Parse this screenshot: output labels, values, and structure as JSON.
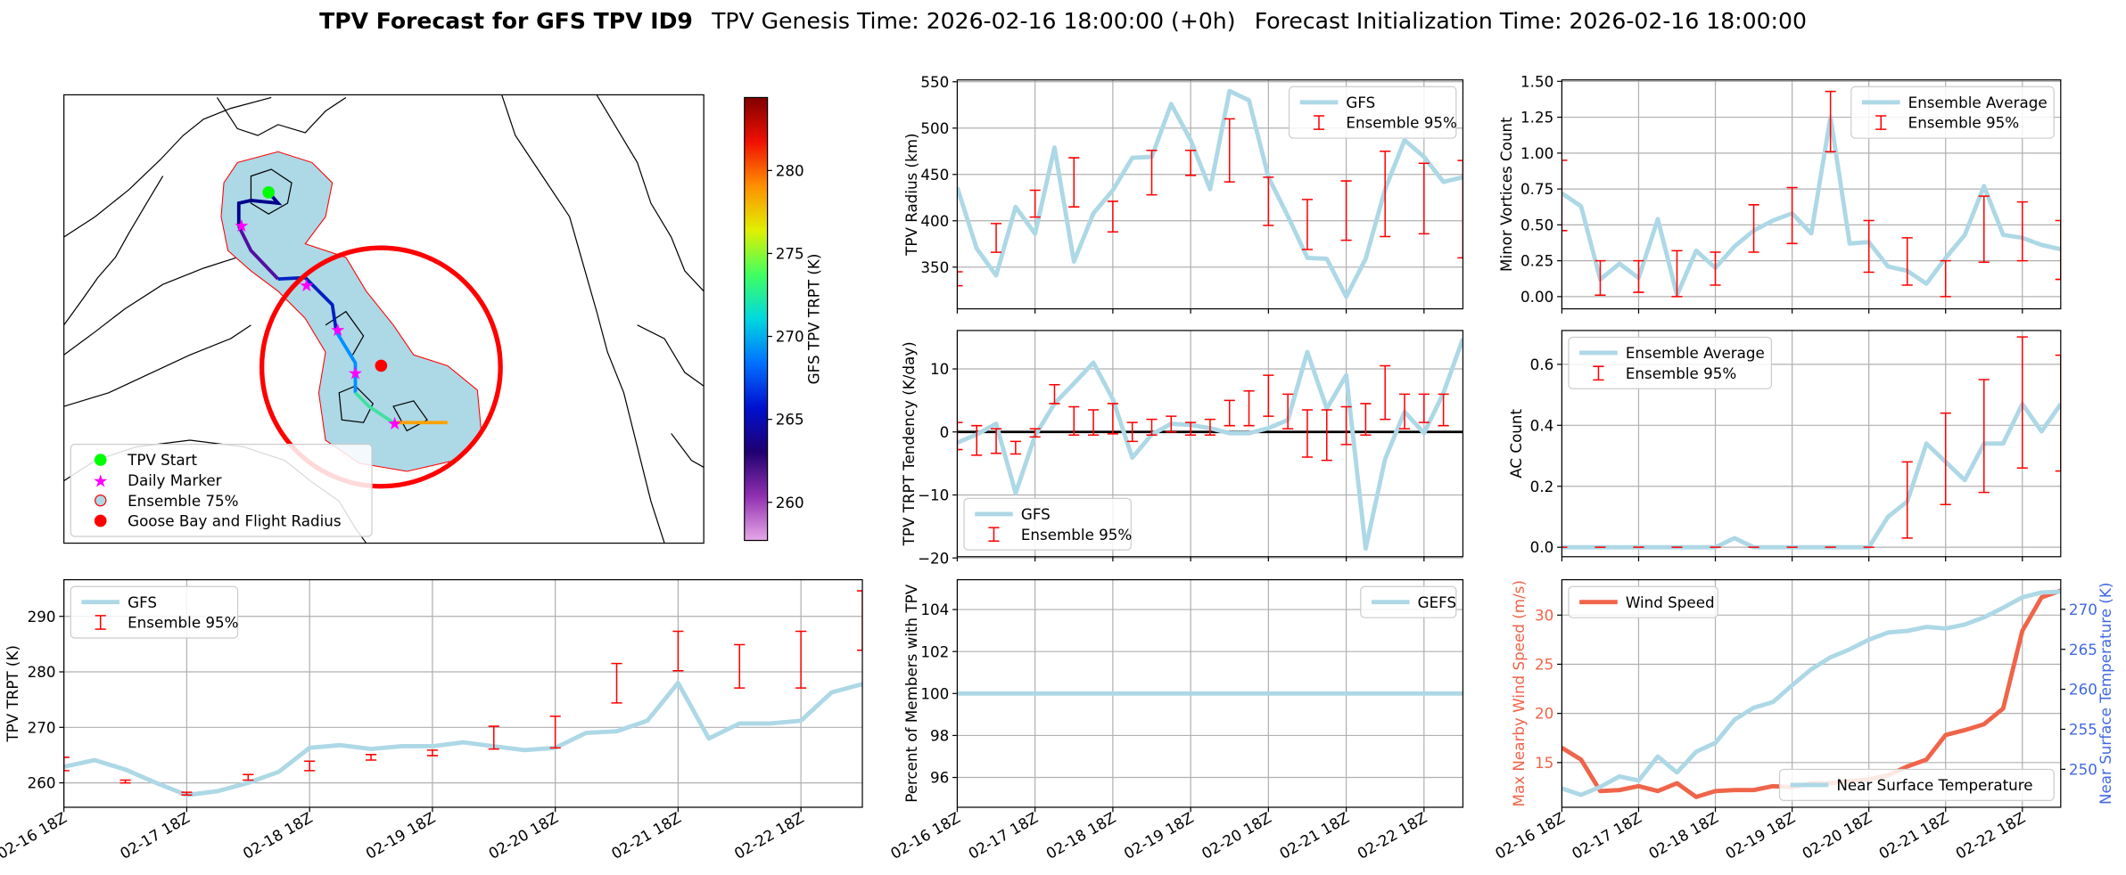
{
  "header": {
    "title": "TPV Forecast for GFS TPV ID9",
    "genesis": "TPV Genesis Time: 2026-02-16 18:00:00 (+0h)",
    "initialization": "Forecast Initialization Time: 2026-02-16 18:00:00"
  },
  "chart_data": [
    {
      "type": "map",
      "colorbar_label": "GFS TPV TRPT (K)",
      "clim": [
        257.7,
        284.4
      ],
      "cticks": [
        260,
        265,
        270,
        275,
        280
      ],
      "legend": "lower left",
      "legend_entries": [
        {
          "name": "TPV Start",
          "color": "#00ff00",
          "marker": "circle"
        },
        {
          "name": "Daily Marker",
          "color": "#ff00ff",
          "marker": "star"
        },
        {
          "name": "Ensemble 75%",
          "color": "#add8e6",
          "marker": "ring"
        },
        {
          "name": "Goose Bay and Flight Radius",
          "color": "#ff0000",
          "marker": "circle"
        }
      ]
    },
    {
      "type": "line",
      "ylabel": "TPV Radius (km)",
      "categories": [
        "02-16 18Z",
        null,
        null,
        null,
        "02-17 18Z",
        null,
        null,
        null,
        "02-18 18Z",
        null,
        null,
        null,
        "02-19 18Z",
        null,
        null,
        null,
        "02-20 18Z",
        null,
        null,
        null,
        "02-21 18Z",
        null,
        null,
        null,
        "02-22 18Z",
        null,
        null
      ],
      "ylim": [
        305,
        552
      ],
      "yticks": [
        350,
        400,
        450,
        500,
        550
      ],
      "grid": true,
      "legend": "upper right",
      "series": [
        {
          "name": "GFS",
          "color": "#add8e6",
          "kind": "line",
          "values": [
            436,
            370,
            341,
            415,
            386,
            479,
            356,
            408,
            433,
            468,
            469,
            526,
            487,
            434,
            540,
            530,
            447,
            405,
            360,
            359,
            318,
            359,
            434,
            487,
            469,
            442,
            447
          ]
        },
        {
          "name": "Ensemble 95%",
          "color": "#ff0000",
          "kind": "errorbar",
          "low": [
            330,
            null,
            366,
            null,
            404,
            null,
            415,
            null,
            388,
            null,
            428,
            null,
            449,
            null,
            442,
            null,
            395,
            null,
            369,
            null,
            379,
            null,
            383,
            null,
            386,
            null,
            360
          ],
          "high": [
            345,
            null,
            397,
            null,
            433,
            null,
            468,
            null,
            421,
            null,
            476,
            null,
            476,
            null,
            510,
            null,
            447,
            null,
            423,
            null,
            443,
            null,
            475,
            null,
            462,
            null,
            465
          ]
        }
      ]
    },
    {
      "type": "line",
      "ylabel": "Minor Vortices Count",
      "categories": [
        "02-16 18Z",
        null,
        null,
        null,
        "02-17 18Z",
        null,
        null,
        null,
        "02-18 18Z",
        null,
        null,
        null,
        "02-19 18Z",
        null,
        null,
        null,
        "02-20 18Z",
        null,
        null,
        null,
        "02-21 18Z",
        null,
        null,
        null,
        "02-22 18Z",
        null,
        null
      ],
      "ylim": [
        -0.085,
        1.51
      ],
      "yticks": [
        {
          "value": 0,
          "label": "0.00"
        },
        {
          "value": 0.25,
          "label": "0.25"
        },
        {
          "value": 0.5,
          "label": "0.50"
        },
        {
          "value": 0.75,
          "label": "0.75"
        },
        {
          "value": 1,
          "label": "1.00"
        },
        {
          "value": 1.25,
          "label": "1.25"
        },
        {
          "value": 1.5,
          "label": "1.50"
        }
      ],
      "grid": true,
      "legend": "upper right",
      "series": [
        {
          "name": "Ensemble Average",
          "color": "#add8e6",
          "kind": "line",
          "values": [
            0.72,
            0.63,
            0.12,
            0.23,
            0.13,
            0.54,
            0.01,
            0.32,
            0.2,
            0.35,
            0.46,
            0.53,
            0.58,
            0.44,
            1.25,
            0.37,
            0.38,
            0.21,
            0.18,
            0.09,
            0.27,
            0.43,
            0.77,
            0.43,
            0.41,
            0.36,
            0.33
          ]
        },
        {
          "name": "Ensemble 95%",
          "color": "#ff0000",
          "kind": "errorbar",
          "low": [
            0.46,
            null,
            0.01,
            null,
            0.03,
            null,
            0,
            null,
            0.08,
            null,
            0.31,
            null,
            0.37,
            null,
            1.01,
            null,
            0.17,
            null,
            0.08,
            null,
            0,
            null,
            0.24,
            null,
            0.25,
            null,
            0.12
          ],
          "high": [
            0.95,
            null,
            0.25,
            null,
            0.25,
            null,
            0.32,
            null,
            0.31,
            null,
            0.64,
            null,
            0.76,
            null,
            1.43,
            null,
            0.53,
            null,
            0.41,
            null,
            0.25,
            null,
            0.7,
            null,
            0.66,
            null,
            0.53
          ]
        }
      ]
    },
    {
      "type": "line",
      "ylabel": "TPV TRPT Tendency (K/day)",
      "categories": [
        "02-16 18Z",
        null,
        null,
        null,
        "02-17 18Z",
        null,
        null,
        null,
        "02-18 18Z",
        null,
        null,
        null,
        "02-19 18Z",
        null,
        null,
        null,
        "02-20 18Z",
        null,
        null,
        null,
        "02-21 18Z",
        null,
        null,
        null,
        "02-22 18Z",
        null,
        null
      ],
      "ylim": [
        -19.8,
        16.1
      ],
      "yticks": [
        10,
        0,
        {
          "value": -10,
          "label": "−10"
        },
        {
          "value": -20,
          "label": "−20"
        }
      ],
      "hline": 0,
      "grid": true,
      "legend": "lower left",
      "series": [
        {
          "name": "GFS",
          "color": "#add8e6",
          "kind": "line",
          "values": [
            -1.7,
            -0.4,
            1.3,
            -9.7,
            -0.6,
            4.5,
            7.7,
            11,
            5.2,
            -4.1,
            -0.4,
            1.3,
            1.1,
            0.6,
            -0.2,
            -0.2,
            0.6,
            1.9,
            12.7,
            3.7,
            9,
            -18.5,
            -4.3,
            3.2,
            -0.2,
            6.2,
            14.8
          ]
        },
        {
          "name": "Ensemble 95%",
          "color": "#ff0000",
          "kind": "errorbar",
          "low": [
            -2.8,
            -3.7,
            -3.4,
            -3.5,
            -0.8,
            4.5,
            -0.5,
            -0.5,
            -0.3,
            -1.5,
            -0.5,
            0,
            -0.5,
            -0.5,
            1,
            1,
            2.5,
            0.5,
            -4,
            -4.5,
            -2,
            -0.5,
            2,
            0.5,
            1.5,
            1,
            null
          ],
          "high": [
            1.5,
            1,
            0.5,
            -1.5,
            0.5,
            7.5,
            4,
            3.5,
            4.5,
            1.5,
            2,
            2.5,
            1.5,
            2,
            5,
            6.5,
            9,
            6,
            3.5,
            3.5,
            4,
            4.5,
            10.5,
            6,
            6,
            6,
            null
          ]
        }
      ]
    },
    {
      "type": "line",
      "ylabel": "AC Count",
      "categories": [
        "02-16 18Z",
        null,
        null,
        null,
        "02-17 18Z",
        null,
        null,
        null,
        "02-18 18Z",
        null,
        null,
        null,
        "02-19 18Z",
        null,
        null,
        null,
        "02-20 18Z",
        null,
        null,
        null,
        "02-21 18Z",
        null,
        null,
        null,
        "02-22 18Z",
        null,
        null
      ],
      "ylim": [
        -0.031,
        0.711
      ],
      "yticks": [
        {
          "value": 0,
          "label": "0.0"
        },
        {
          "value": 0.2,
          "label": "0.2"
        },
        {
          "value": 0.4,
          "label": "0.4"
        },
        {
          "value": 0.6,
          "label": "0.6"
        }
      ],
      "grid": true,
      "legend": "upper left",
      "series": [
        {
          "name": "Ensemble Average",
          "color": "#add8e6",
          "kind": "line",
          "values": [
            0,
            0,
            0,
            0,
            0,
            0,
            0,
            0,
            0,
            0.03,
            0,
            0,
            0,
            0,
            0,
            0,
            0,
            0.1,
            0.15,
            0.34,
            0.28,
            0.22,
            0.34,
            0.34,
            0.47,
            0.38,
            0.47
          ]
        },
        {
          "name": "Ensemble 95%",
          "color": "#ff0000",
          "kind": "errorbar",
          "low": [
            0,
            null,
            0,
            null,
            0,
            null,
            0,
            null,
            0,
            null,
            0,
            null,
            0,
            null,
            0,
            null,
            0,
            null,
            0.03,
            null,
            0.14,
            null,
            0.18,
            null,
            0.26,
            null,
            0.25
          ],
          "high": [
            0,
            null,
            0,
            null,
            0,
            null,
            0,
            null,
            0,
            null,
            0,
            null,
            0,
            null,
            0,
            null,
            0,
            null,
            0.28,
            null,
            0.44,
            null,
            0.55,
            null,
            0.69,
            null,
            0.63
          ]
        }
      ]
    },
    {
      "type": "line",
      "ylabel": "TPV TRPT (K)",
      "categories": [
        "02-16 18Z",
        null,
        null,
        null,
        "02-17 18Z",
        null,
        null,
        null,
        "02-18 18Z",
        null,
        null,
        null,
        "02-19 18Z",
        null,
        null,
        null,
        "02-20 18Z",
        null,
        null,
        null,
        "02-21 18Z",
        null,
        null,
        null,
        "02-22 18Z",
        null,
        null
      ],
      "ylim": [
        255.6,
        296.6
      ],
      "yticks": [
        260,
        270,
        280,
        290
      ],
      "grid": true,
      "legend": "upper left",
      "series": [
        {
          "name": "GFS",
          "color": "#add8e6",
          "kind": "line",
          "values": [
            262.9,
            264.1,
            262.4,
            260,
            257.8,
            258.5,
            260,
            262,
            266.3,
            266.8,
            266.1,
            266.6,
            266.6,
            267.3,
            266.6,
            265.9,
            266.3,
            269,
            269.3,
            271.2,
            278,
            268,
            270.7,
            270.7,
            271.2,
            276.3,
            277.8
          ]
        },
        {
          "name": "Ensemble 95%",
          "color": "#ff0000",
          "kind": "errorbar",
          "low": [
            262.2,
            null,
            260,
            null,
            257.8,
            null,
            260.5,
            null,
            262.2,
            null,
            264.1,
            null,
            264.9,
            null,
            266.1,
            null,
            266.3,
            null,
            274.4,
            null,
            280.2,
            null,
            277.1,
            null,
            277.1,
            null,
            283.9
          ],
          "high": [
            264.6,
            null,
            260.5,
            null,
            258.3,
            null,
            261.5,
            null,
            263.9,
            null,
            265.1,
            null,
            265.9,
            null,
            270.2,
            null,
            272,
            null,
            281.5,
            null,
            287.3,
            null,
            284.9,
            null,
            287.3,
            null,
            294.6
          ]
        }
      ]
    },
    {
      "type": "line",
      "ylabel": "Percent of Members with TPV",
      "categories": [
        "02-16 18Z",
        null,
        null,
        null,
        "02-17 18Z",
        null,
        null,
        null,
        "02-18 18Z",
        null,
        null,
        null,
        "02-19 18Z",
        null,
        null,
        null,
        "02-20 18Z",
        null,
        null,
        null,
        "02-21 18Z",
        null,
        null,
        null,
        "02-22 18Z",
        null,
        null
      ],
      "ylim": [
        94.58,
        105.42
      ],
      "yticks": [
        96,
        98,
        100,
        102,
        104
      ],
      "grid": true,
      "legend": "upper right",
      "series": [
        {
          "name": "GEFS",
          "color": "#add8e6",
          "kind": "line",
          "values": [
            100,
            100,
            100,
            100,
            100,
            100,
            100,
            100,
            100,
            100,
            100,
            100,
            100,
            100,
            100,
            100,
            100,
            100,
            100,
            100,
            100,
            100,
            100,
            100,
            100,
            100,
            100
          ]
        }
      ]
    },
    {
      "type": "line",
      "ylabel": "Max Nearby Wind Speed (m/s)",
      "y2label": "Near Surface Temperature (K)",
      "ycolor": "#f0644a",
      "y2color": "#4169e1",
      "categories": [
        "02-16 18Z",
        null,
        null,
        null,
        "02-17 18Z",
        null,
        null,
        null,
        "02-18 18Z",
        null,
        null,
        null,
        "02-19 18Z",
        null,
        null,
        null,
        "02-20 18Z",
        null,
        null,
        null,
        "02-21 18Z",
        null,
        null,
        null,
        "02-22 18Z",
        null,
        null
      ],
      "ylim": [
        10.45,
        33.6
      ],
      "yticks": [
        15,
        20,
        25,
        30
      ],
      "y2lim": [
        245.25,
        273.7
      ],
      "y2ticks": [
        250,
        255,
        260,
        265,
        270
      ],
      "grid": true,
      "series": [
        {
          "name": "Wind Speed",
          "color": "#f0644a",
          "kind": "line",
          "legend": "upper left",
          "values": [
            16.5,
            15.3,
            12.1,
            12.2,
            12.6,
            12.1,
            12.9,
            11.5,
            12.1,
            12.2,
            12.2,
            12.6,
            12.5,
            12.9,
            12.9,
            13.1,
            13.3,
            13.7,
            14.6,
            15.3,
            17.8,
            18.3,
            18.9,
            20.5,
            28.4,
            31.8,
            32.5
          ]
        },
        {
          "name": "Near Surface Temperature",
          "color": "#add8e6",
          "kind": "line",
          "axis": "y2",
          "legend": "lower right",
          "values": [
            247.6,
            246.8,
            247.8,
            249.1,
            248.6,
            251.6,
            249.6,
            252.2,
            253.3,
            256.2,
            257.7,
            258.4,
            260.5,
            262.5,
            264,
            265,
            266.2,
            267.1,
            267.3,
            267.8,
            267.6,
            268.1,
            269,
            270.2,
            271.5,
            272.1,
            272.2
          ]
        }
      ]
    }
  ]
}
